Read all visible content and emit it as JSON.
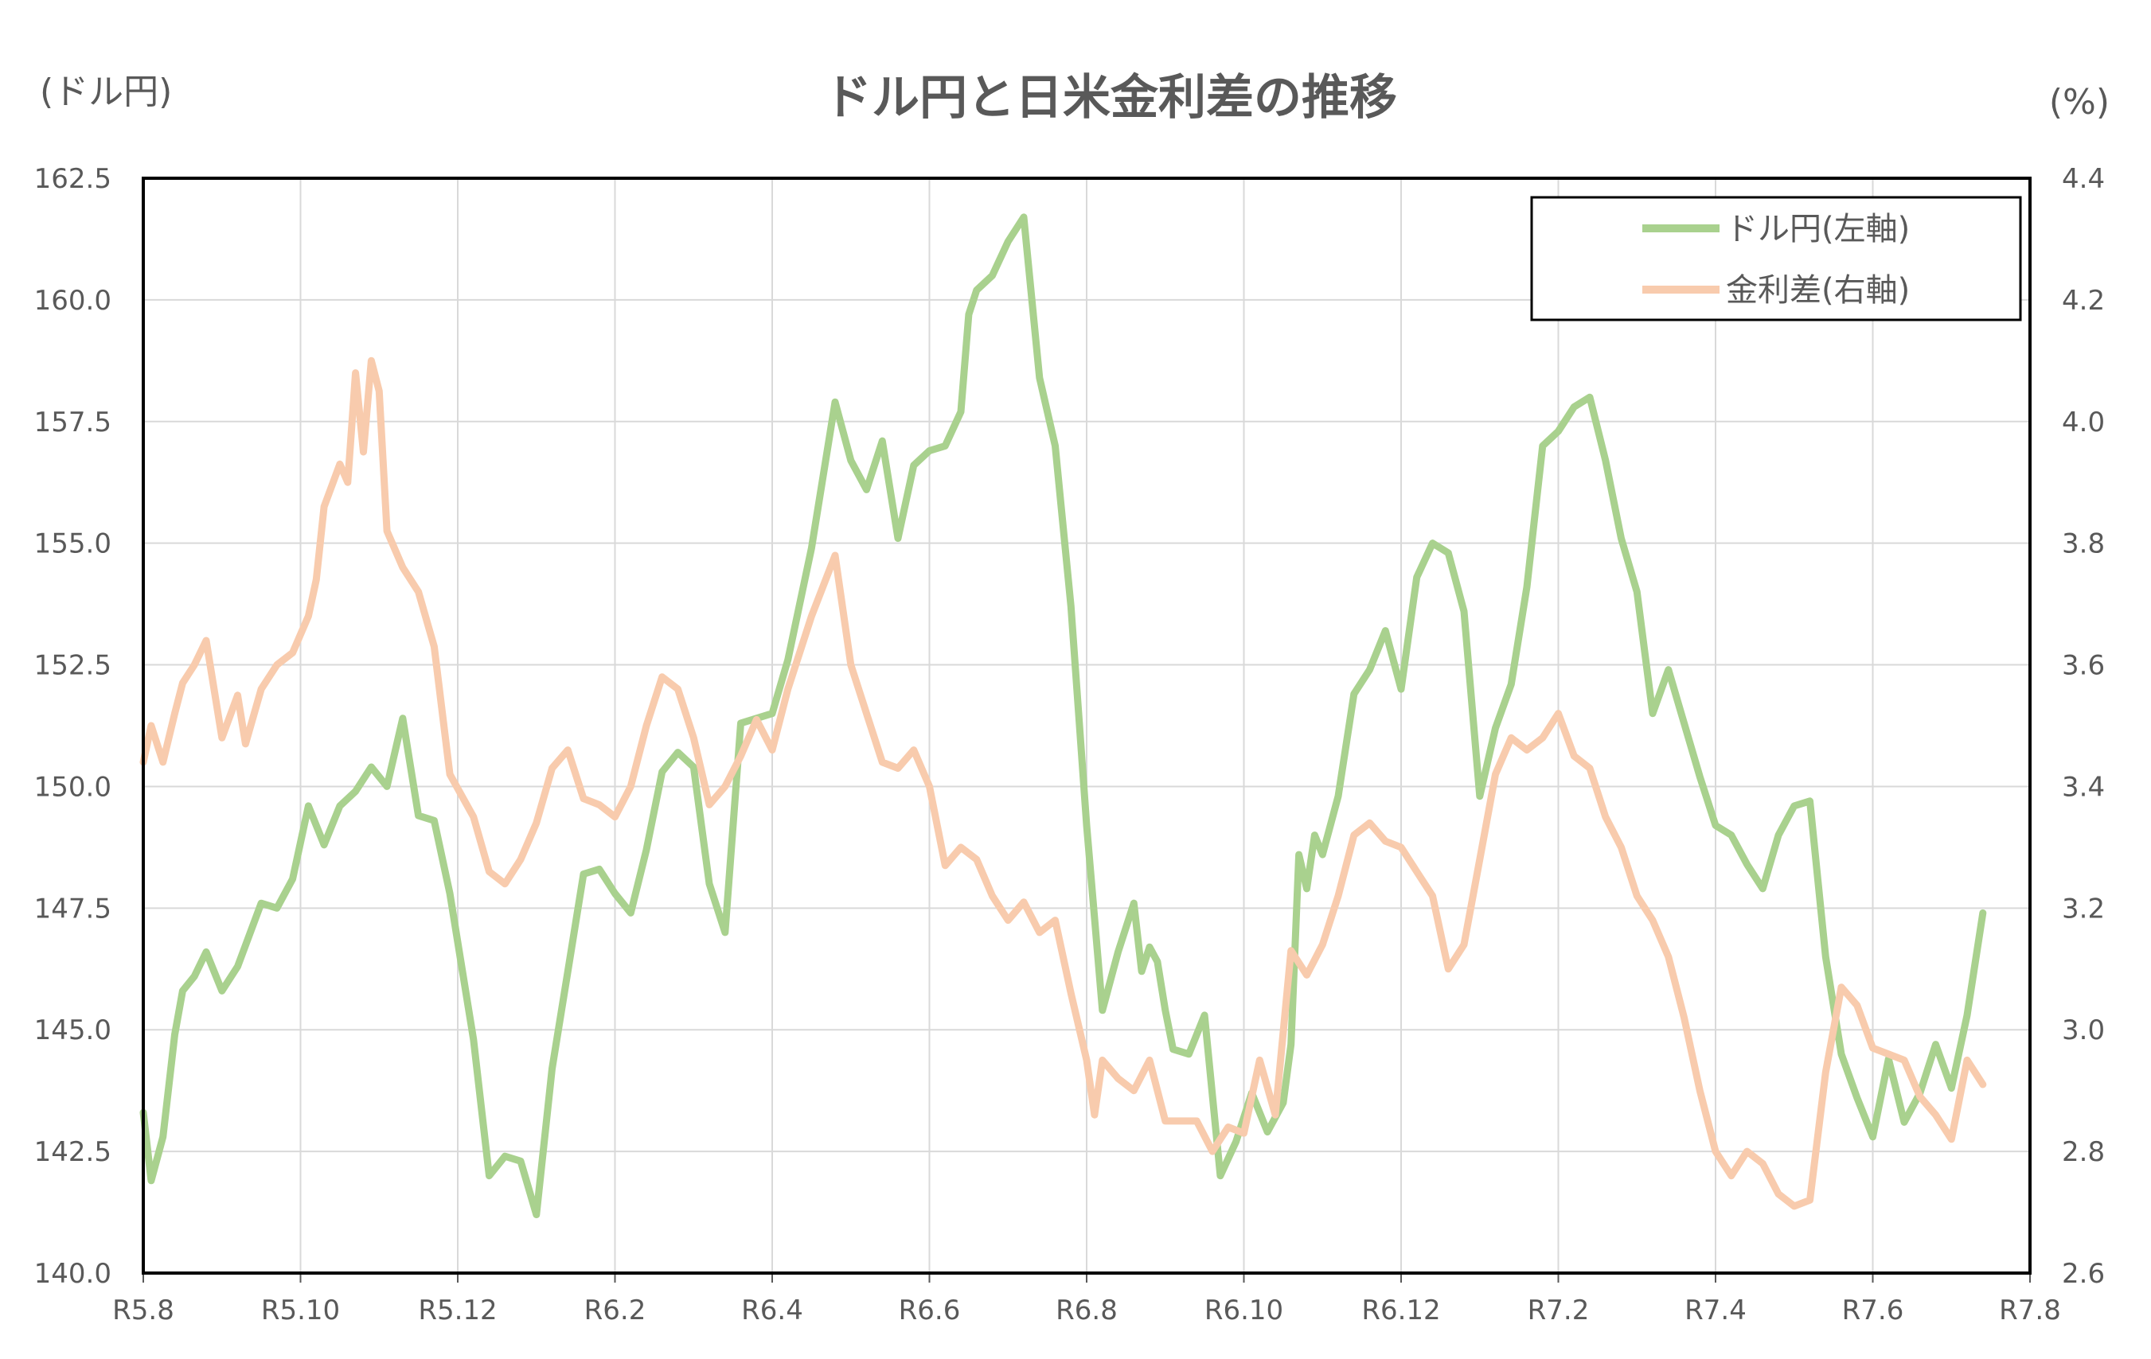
{
  "chart_data": {
    "type": "line",
    "title": "ドル円と日米金利差の推移",
    "y_left_unit": "(ドル円)",
    "y_right_unit": "(%)",
    "x_ticks": [
      "R5.8",
      "R5.10",
      "R5.12",
      "R6.2",
      "R6.4",
      "R6.6",
      "R6.8",
      "R6.10",
      "R6.12",
      "R7.2",
      "R7.4",
      "R7.6",
      "R7.8"
    ],
    "y_left_ticks": [
      "140.0",
      "142.5",
      "145.0",
      "147.5",
      "150.0",
      "152.5",
      "155.0",
      "157.5",
      "160.0",
      "162.5"
    ],
    "y_right_ticks": [
      "2.6",
      "2.8",
      "3.0",
      "3.2",
      "3.4",
      "3.6",
      "3.8",
      "4.0",
      "4.2",
      "4.4"
    ],
    "ylim_left": [
      140.0,
      162.5
    ],
    "ylim_right": [
      2.6,
      4.4
    ],
    "x_range_months": [
      0,
      24
    ],
    "grid": true,
    "legend_position": "top-right",
    "series": [
      {
        "name": "ドル円(左軸)",
        "axis": "left",
        "color": "#a9d18e",
        "x": [
          0,
          0.1,
          0.25,
          0.4,
          0.5,
          0.65,
          0.8,
          1.0,
          1.2,
          1.5,
          1.7,
          1.9,
          2.1,
          2.3,
          2.5,
          2.7,
          2.9,
          3.1,
          3.3,
          3.5,
          3.7,
          3.9,
          4.2,
          4.4,
          4.6,
          4.8,
          5.0,
          5.2,
          5.4,
          5.6,
          5.8,
          6.0,
          6.2,
          6.4,
          6.6,
          6.8,
          7.0,
          7.2,
          7.4,
          7.6,
          7.8,
          8.0,
          8.2,
          8.5,
          8.8,
          9.0,
          9.2,
          9.4,
          9.6,
          9.8,
          10.0,
          10.2,
          10.4,
          10.5,
          10.6,
          10.8,
          11.0,
          11.2,
          11.4,
          11.6,
          11.8,
          12.0,
          12.2,
          12.4,
          12.6,
          12.7,
          12.8,
          12.9,
          13.0,
          13.1,
          13.3,
          13.5,
          13.7,
          13.9,
          14.1,
          14.3,
          14.5,
          14.6,
          14.7,
          14.8,
          14.9,
          15.0,
          15.2,
          15.4,
          15.6,
          15.8,
          16.0,
          16.2,
          16.4,
          16.6,
          16.8,
          17.0,
          17.2,
          17.4,
          17.6,
          17.8,
          18.0,
          18.2,
          18.4,
          18.6,
          18.8,
          19.0,
          19.2,
          19.4,
          19.6,
          19.8,
          20.0,
          20.2,
          20.4,
          20.6,
          20.8,
          21.0,
          21.2,
          21.4,
          21.6,
          21.8,
          22.0,
          22.2,
          22.4,
          22.6,
          22.8,
          23.0,
          23.2,
          23.4
        ],
        "values": [
          143.3,
          141.9,
          142.8,
          144.9,
          145.8,
          146.1,
          146.6,
          145.8,
          146.3,
          147.6,
          147.5,
          148.1,
          149.6,
          148.8,
          149.6,
          149.9,
          150.4,
          150.0,
          151.4,
          149.4,
          149.3,
          147.8,
          144.8,
          142.0,
          142.4,
          142.3,
          141.2,
          144.2,
          146.2,
          148.2,
          148.3,
          147.8,
          147.4,
          148.7,
          150.3,
          150.7,
          150.4,
          148.0,
          147.0,
          151.3,
          151.4,
          151.5,
          152.6,
          154.9,
          157.9,
          156.7,
          156.1,
          157.1,
          155.1,
          156.6,
          156.9,
          157.0,
          157.7,
          159.7,
          160.2,
          160.5,
          161.2,
          161.7,
          158.4,
          157.0,
          153.7,
          149.2,
          145.4,
          146.6,
          147.6,
          146.2,
          146.7,
          146.4,
          145.4,
          144.6,
          144.5,
          145.3,
          142.0,
          142.7,
          143.7,
          142.9,
          143.5,
          144.7,
          148.6,
          147.9,
          149.0,
          148.6,
          149.8,
          151.9,
          152.4,
          153.2,
          152.0,
          154.3,
          155.0,
          154.8,
          153.6,
          149.8,
          151.2,
          152.1,
          154.1,
          157.0,
          157.3,
          157.8,
          158.0,
          156.7,
          155.1,
          154.0,
          151.5,
          152.4,
          151.3,
          150.2,
          149.2,
          149.0,
          148.4,
          147.9,
          149.0,
          149.6,
          149.7,
          146.5,
          144.5,
          143.6,
          142.8,
          144.4,
          143.1,
          143.7,
          144.7,
          143.8,
          145.3,
          147.4
        ]
      },
      {
        "name": "金利差(右軸)",
        "axis": "right",
        "color": "#f8cbad",
        "x": [
          0,
          0.1,
          0.25,
          0.4,
          0.5,
          0.65,
          0.8,
          1.0,
          1.2,
          1.3,
          1.5,
          1.7,
          1.9,
          2.1,
          2.2,
          2.3,
          2.5,
          2.6,
          2.7,
          2.8,
          2.9,
          3.0,
          3.1,
          3.3,
          3.5,
          3.7,
          3.9,
          4.2,
          4.4,
          4.6,
          4.8,
          5.0,
          5.2,
          5.4,
          5.6,
          5.8,
          6.0,
          6.2,
          6.4,
          6.6,
          6.8,
          7.0,
          7.2,
          7.4,
          7.6,
          7.8,
          8.0,
          8.2,
          8.5,
          8.8,
          9.0,
          9.2,
          9.4,
          9.6,
          9.8,
          10.0,
          10.2,
          10.4,
          10.6,
          10.8,
          11.0,
          11.2,
          11.4,
          11.6,
          11.8,
          12.0,
          12.1,
          12.2,
          12.4,
          12.6,
          12.8,
          13.0,
          13.2,
          13.4,
          13.6,
          13.8,
          14.0,
          14.2,
          14.4,
          14.6,
          14.8,
          15.0,
          15.2,
          15.4,
          15.6,
          15.8,
          16.0,
          16.2,
          16.4,
          16.6,
          16.8,
          17.0,
          17.2,
          17.4,
          17.6,
          17.8,
          18.0,
          18.2,
          18.4,
          18.6,
          18.8,
          19.0,
          19.2,
          19.4,
          19.6,
          19.8,
          20.0,
          20.2,
          20.4,
          20.6,
          20.8,
          21.0,
          21.2,
          21.4,
          21.6,
          21.8,
          22.0,
          22.2,
          22.4,
          22.6,
          22.8,
          23.0,
          23.2,
          23.4
        ],
        "values": [
          3.44,
          3.5,
          3.44,
          3.52,
          3.57,
          3.6,
          3.64,
          3.48,
          3.55,
          3.47,
          3.56,
          3.6,
          3.62,
          3.68,
          3.74,
          3.86,
          3.93,
          3.9,
          4.08,
          3.95,
          4.1,
          4.05,
          3.82,
          3.76,
          3.72,
          3.63,
          3.42,
          3.35,
          3.26,
          3.24,
          3.28,
          3.34,
          3.43,
          3.46,
          3.38,
          3.37,
          3.35,
          3.4,
          3.5,
          3.58,
          3.56,
          3.48,
          3.37,
          3.4,
          3.45,
          3.51,
          3.46,
          3.56,
          3.68,
          3.78,
          3.6,
          3.52,
          3.44,
          3.43,
          3.46,
          3.4,
          3.27,
          3.3,
          3.28,
          3.22,
          3.18,
          3.21,
          3.16,
          3.18,
          3.06,
          2.95,
          2.86,
          2.95,
          2.92,
          2.9,
          2.95,
          2.85,
          2.85,
          2.85,
          2.8,
          2.84,
          2.83,
          2.95,
          2.86,
          3.13,
          3.09,
          3.14,
          3.22,
          3.32,
          3.34,
          3.31,
          3.3,
          3.26,
          3.22,
          3.1,
          3.14,
          3.28,
          3.42,
          3.48,
          3.46,
          3.48,
          3.52,
          3.45,
          3.43,
          3.35,
          3.3,
          3.22,
          3.18,
          3.12,
          3.02,
          2.9,
          2.8,
          2.76,
          2.8,
          2.78,
          2.73,
          2.71,
          2.72,
          2.93,
          3.07,
          3.04,
          2.97,
          2.96,
          2.95,
          2.89,
          2.86,
          2.82,
          2.95,
          2.91
        ]
      }
    ]
  }
}
